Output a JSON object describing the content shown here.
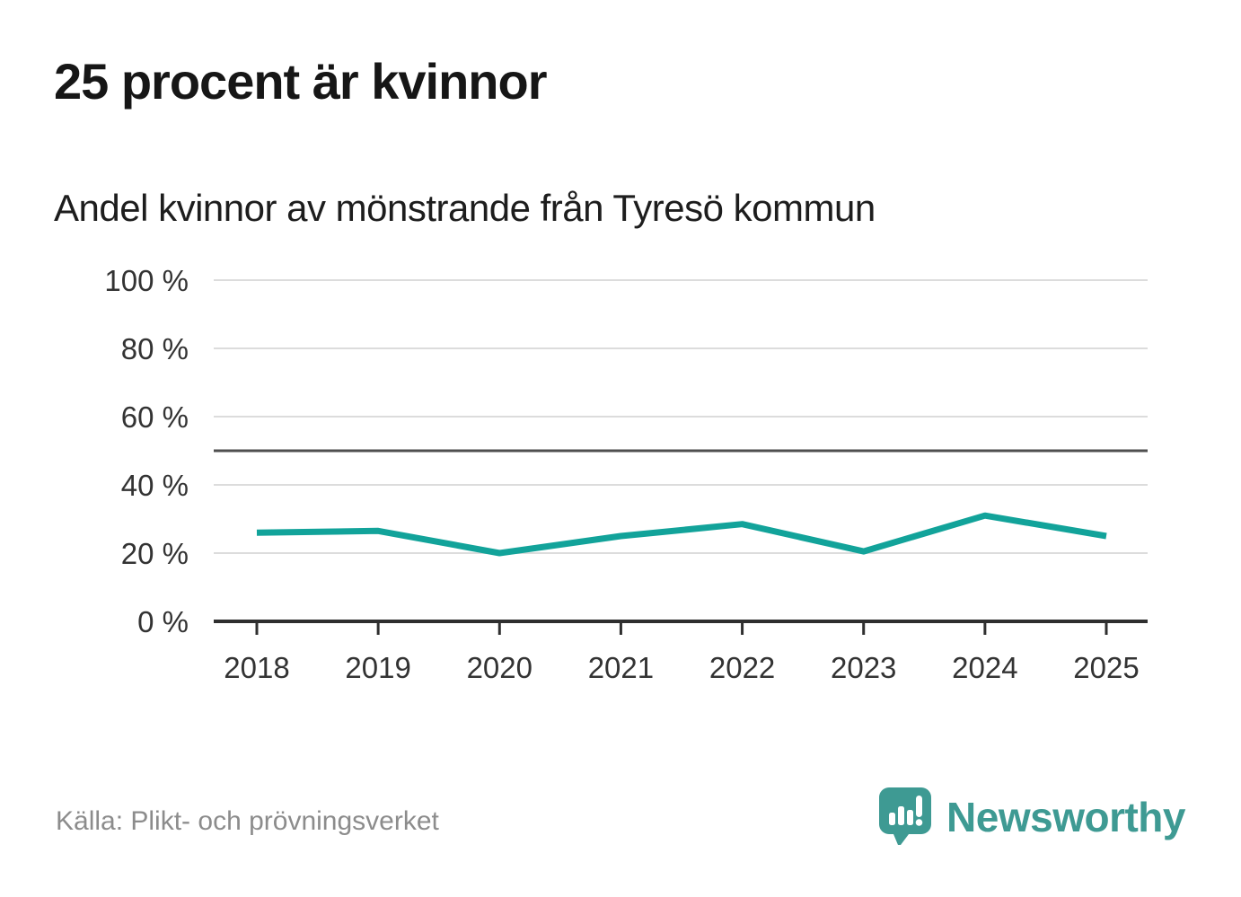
{
  "header": {
    "title": "25 procent är kvinnor",
    "subtitle": "Andel kvinnor av mönstrande från Tyresö kommun"
  },
  "chart_data": {
    "type": "line",
    "title": "25 procent är kvinnor",
    "subtitle": "Andel kvinnor av mönstrande från Tyresö kommun",
    "x": [
      "2018",
      "2019",
      "2020",
      "2021",
      "2022",
      "2023",
      "2024",
      "2025"
    ],
    "series": [
      {
        "name": "Andel kvinnor av mönstrande",
        "values": [
          26,
          26.5,
          20,
          25,
          28.5,
          20.5,
          31,
          25
        ]
      }
    ],
    "unit": "%",
    "ylim": [
      0,
      100
    ],
    "yticks": [
      0,
      20,
      40,
      60,
      80,
      100
    ],
    "ytick_labels": [
      "0 %",
      "20 %",
      "40 %",
      "60 %",
      "80 %",
      "100 %"
    ],
    "reference_line": {
      "value": 50
    },
    "grid": "horizontal",
    "legend": "none",
    "colors": {
      "line": "#12a39a",
      "grid": "#dcdcdc",
      "axis": "#2f2f2f",
      "reference": "#4f4f4f",
      "tick_label": "#333333"
    }
  },
  "footer": {
    "source": "Källa: Plikt- och prövningsverket",
    "brand": {
      "name": "Newsworthy",
      "color": "#3e9a93",
      "icon": "speech-bubble-chart-icon"
    }
  }
}
